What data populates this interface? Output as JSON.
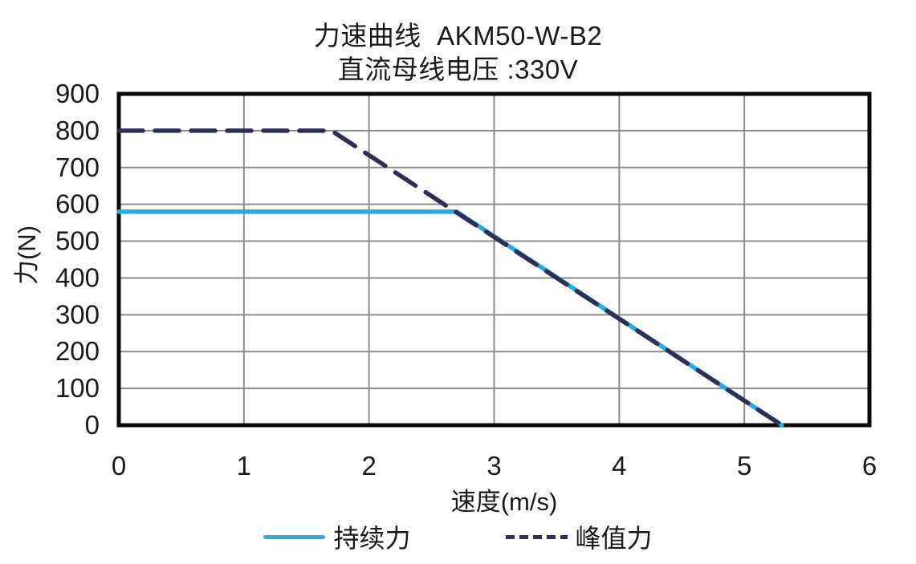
{
  "chart_data": {
    "type": "line",
    "title": "力速曲线  AKM50-W-B2",
    "subtitle": "直流母线电压 :330V",
    "xlabel": "速度(m/s)",
    "ylabel": "力(N)",
    "xlim": [
      0,
      6
    ],
    "ylim": [
      0,
      900
    ],
    "xticks": [
      0,
      1,
      2,
      3,
      4,
      5,
      6
    ],
    "yticks": [
      0,
      100,
      200,
      300,
      400,
      500,
      600,
      700,
      800,
      900
    ],
    "grid": true,
    "legend_position": "bottom",
    "colors": {
      "grid": "#8d8d8d",
      "border": "#0a0a0a",
      "text": "#1a1a1a"
    },
    "series": [
      {
        "name": "持续力",
        "color": "#29abe2",
        "style": "solid",
        "points": [
          [
            0,
            580
          ],
          [
            2.7,
            580
          ],
          [
            5.3,
            0
          ]
        ]
      },
      {
        "name": "峰值力",
        "color": "#2f2e55",
        "style": "dashed",
        "points": [
          [
            0,
            800
          ],
          [
            1.7,
            800
          ],
          [
            5.3,
            0
          ]
        ]
      }
    ]
  }
}
